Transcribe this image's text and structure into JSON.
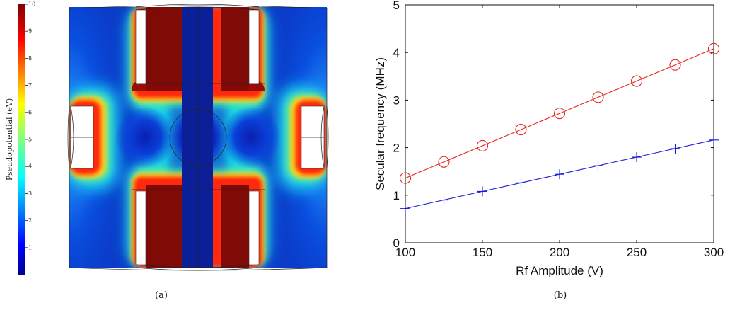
{
  "panel_a": {
    "caption": "(a)",
    "colorbar": {
      "label": "Pseudopotential (eV)",
      "ticks": [
        "1",
        "2",
        "3",
        "4",
        "5",
        "6",
        "7",
        "8",
        "9",
        "10"
      ],
      "min": 0,
      "max": 10,
      "colormap": "jet"
    }
  },
  "panel_b": {
    "caption": "(b)"
  },
  "chart_data": [
    {
      "type": "heatmap",
      "colormap": "jet",
      "value_range": [
        0,
        10
      ],
      "colorbar_label": "Pseudopotential (eV)",
      "colorbar_ticks": [
        1,
        2,
        3,
        4,
        5,
        6,
        7,
        8,
        9,
        10
      ],
      "caption": "(a)"
    },
    {
      "type": "line",
      "caption": "(b)",
      "xlabel": "Rf Amplitude (V)",
      "ylabel": "Secular frequency (MHz)",
      "xlim": [
        100,
        300
      ],
      "ylim": [
        0,
        5
      ],
      "xticks": [
        100,
        150,
        200,
        250,
        300
      ],
      "yticks": [
        0,
        1,
        2,
        3,
        4,
        5
      ],
      "grid": false,
      "series": [
        {
          "color": "#e8261e",
          "marker": "circle",
          "x": [
            100,
            125,
            150,
            175,
            200,
            225,
            250,
            275,
            300
          ],
          "y": [
            1.36,
            1.7,
            2.04,
            2.38,
            2.72,
            3.06,
            3.4,
            3.74,
            4.08
          ]
        },
        {
          "color": "#1c1cd6",
          "marker": "plus",
          "x": [
            100,
            125,
            150,
            175,
            200,
            225,
            250,
            275,
            300
          ],
          "y": [
            0.72,
            0.9,
            1.08,
            1.26,
            1.44,
            1.62,
            1.8,
            1.98,
            2.16
          ]
        }
      ]
    }
  ]
}
